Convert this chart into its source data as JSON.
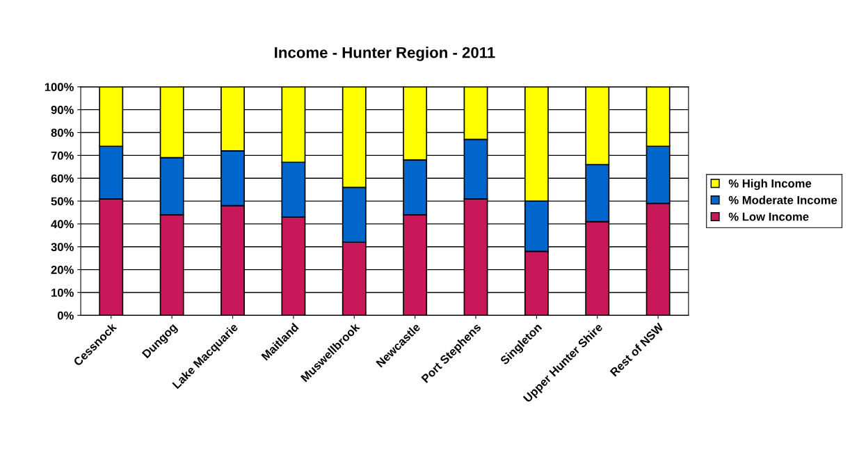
{
  "chart_data": {
    "type": "bar",
    "stacked": true,
    "title": "Income - Hunter Region - 2011",
    "categories": [
      "Cessnock",
      "Dungog",
      "Lake Macquarie",
      "Maitland",
      "Muswellbrook",
      "Newcastle",
      "Port Stephens",
      "Singleton",
      "Upper Hunter Shire",
      "Rest of NSW"
    ],
    "series": [
      {
        "name": "% Low Income",
        "color": "#c8185a",
        "values": [
          51,
          44,
          48,
          43,
          32,
          44,
          51,
          28,
          41,
          49
        ]
      },
      {
        "name": "% Moderate Income",
        "color": "#0066cc",
        "values": [
          23,
          25,
          24,
          24,
          24,
          24,
          26,
          22,
          25,
          25
        ]
      },
      {
        "name": "% High Income",
        "color": "#ffff00",
        "values": [
          26,
          31,
          28,
          33,
          44,
          32,
          23,
          50,
          34,
          26
        ]
      }
    ],
    "ylim": [
      0,
      100
    ],
    "yticks": [
      {
        "value": 0,
        "label": "0%"
      },
      {
        "value": 10,
        "label": "10%"
      },
      {
        "value": 20,
        "label": "20%"
      },
      {
        "value": 30,
        "label": "30%"
      },
      {
        "value": 40,
        "label": "40%"
      },
      {
        "value": 50,
        "label": "50%"
      },
      {
        "value": 60,
        "label": "60%"
      },
      {
        "value": 70,
        "label": "70%"
      },
      {
        "value": 80,
        "label": "80%"
      },
      {
        "value": 90,
        "label": "90%"
      },
      {
        "value": 100,
        "label": "100%"
      }
    ],
    "grid": "y",
    "legend": "right"
  }
}
